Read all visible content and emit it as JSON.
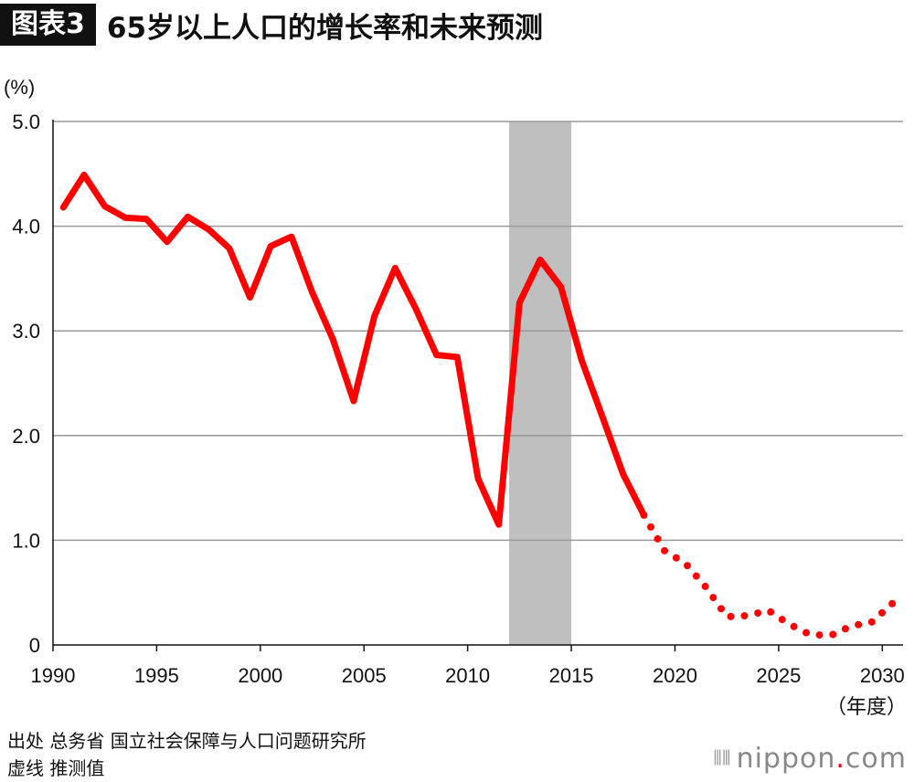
{
  "title_badge": "图表3",
  "title": "65岁以上人口的增长率和未来预测",
  "source_lines": [
    "出处  总务省  国立社会保障与人口问题研究所",
    "虚线  推测值"
  ],
  "brand": {
    "prefix": "nippon",
    "dot": ".",
    "suffix": "com"
  },
  "chart_data": {
    "type": "line",
    "ylabel": "(%)",
    "xlabel": "（年度）",
    "xlim": [
      1990,
      2031
    ],
    "ylim": [
      0,
      5.0
    ],
    "x_ticks": [
      1990,
      1995,
      2000,
      2005,
      2010,
      2015,
      2020,
      2025,
      2030
    ],
    "y_ticks": [
      "0",
      "1.0",
      "2.0",
      "3.0",
      "4.0",
      "5.0"
    ],
    "y_tick_values": [
      0,
      1.0,
      2.0,
      3.0,
      4.0,
      5.0
    ],
    "grid": true,
    "highlight_range": [
      2012,
      2015
    ],
    "colors": {
      "line": "#ff0000",
      "highlight": "#bfbfbf",
      "grid": "#9a9a9a"
    },
    "series": [
      {
        "style": "solid",
        "x": [
          1990.5,
          1991.5,
          1992.5,
          1993.5,
          1994.5,
          1995.5,
          1996.5,
          1997.5,
          1998.5,
          1999.5,
          2000.5,
          2001.5,
          2002.5,
          2003.5,
          2004.5,
          2005.5,
          2006.5,
          2007.5,
          2008.5,
          2009.5,
          2010.5,
          2011.5,
          2012.5,
          2013.5,
          2014.5,
          2015.5,
          2016.5,
          2017.5,
          2018.5
        ],
        "y": [
          4.18,
          4.49,
          4.19,
          4.08,
          4.07,
          3.85,
          4.09,
          3.97,
          3.79,
          3.32,
          3.81,
          3.9,
          3.37,
          2.92,
          2.33,
          3.14,
          3.6,
          3.21,
          2.77,
          2.75,
          1.59,
          1.15,
          3.27,
          3.68,
          3.42,
          2.72,
          2.18,
          1.63,
          1.24
        ]
      },
      {
        "style": "dotted",
        "x": [
          2018.5,
          2019.5,
          2020.5,
          2021.5,
          2022.5,
          2023.5,
          2024.5,
          2025.5,
          2026.5,
          2027.5,
          2028.5,
          2029.5,
          2030.5
        ],
        "y": [
          1.24,
          0.9,
          0.78,
          0.55,
          0.27,
          0.28,
          0.33,
          0.2,
          0.1,
          0.09,
          0.18,
          0.22,
          0.4
        ]
      }
    ]
  }
}
